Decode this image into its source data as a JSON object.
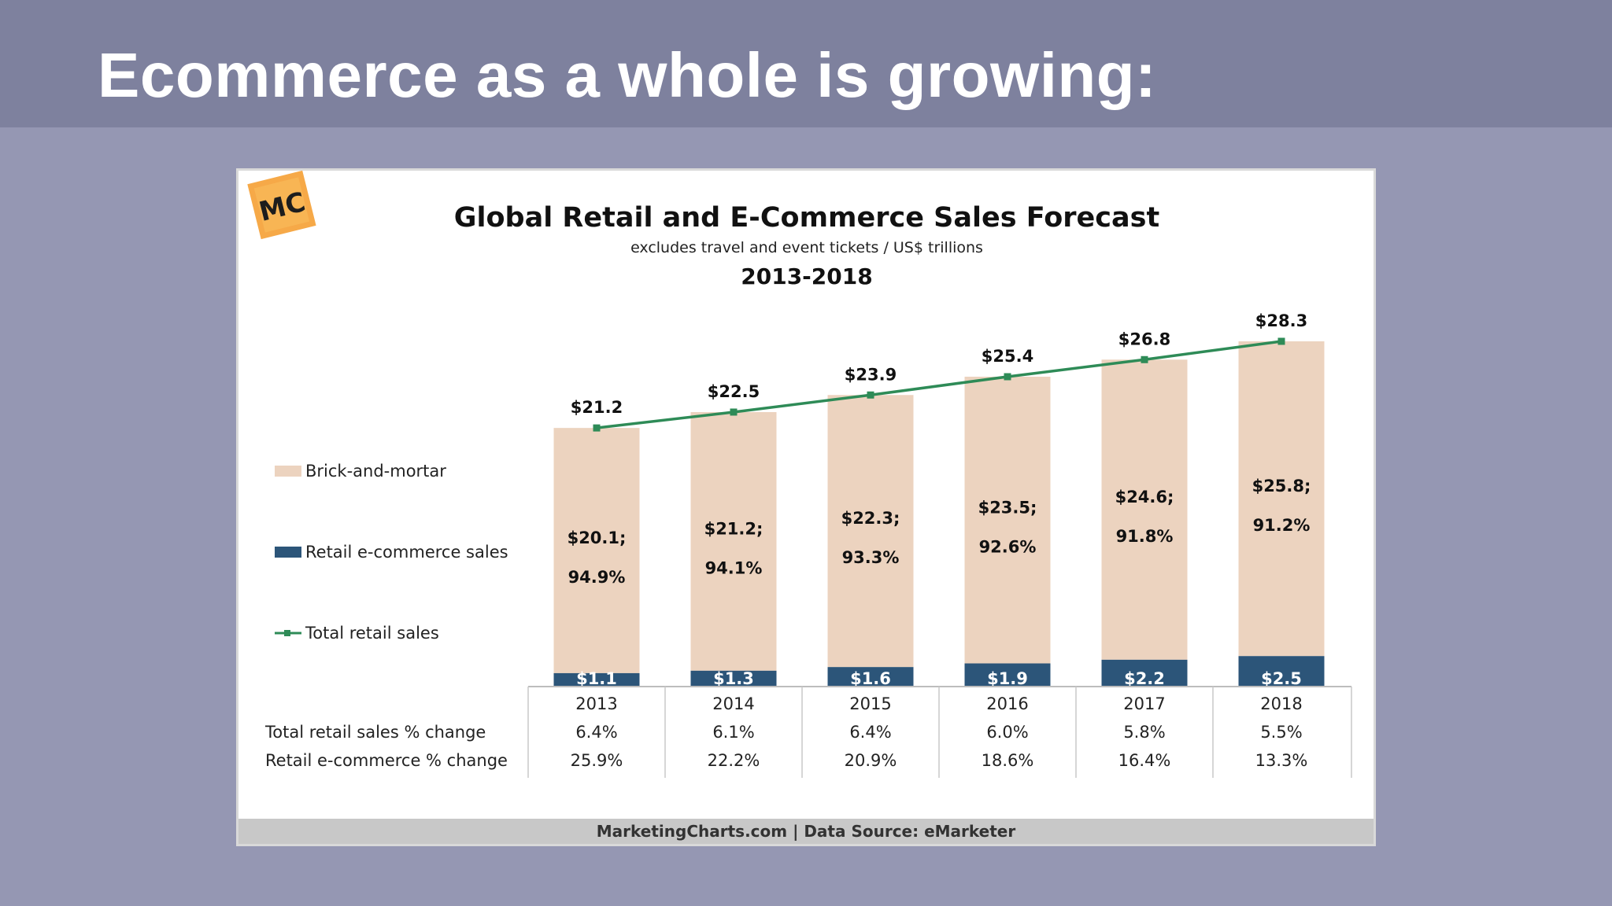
{
  "slide": {
    "title": "Ecommerce as a whole is growing:"
  },
  "chart": {
    "logo_text": "MC",
    "title": "Global Retail and E-Commerce Sales Forecast",
    "subtitle": "excludes travel and event tickets / US$ trillions",
    "period": "2013-2018",
    "footer": "MarketingCharts.com | Data Source: eMarketer",
    "table_rows": [
      {
        "label": "Total retail sales % change",
        "values": [
          "6.4%",
          "6.1%",
          "6.4%",
          "6.0%",
          "5.8%",
          "5.5%"
        ]
      },
      {
        "label": "Retail e-commerce % change",
        "values": [
          "25.9%",
          "22.2%",
          "20.9%",
          "18.6%",
          "16.4%",
          "13.3%"
        ]
      }
    ]
  },
  "chart_data": {
    "type": "bar",
    "stacked": true,
    "categories": [
      "2013",
      "2014",
      "2015",
      "2016",
      "2017",
      "2018"
    ],
    "series": [
      {
        "name": "Brick-and-mortar",
        "kind": "bar",
        "color": "#ecd3bf",
        "values": [
          20.1,
          21.2,
          22.3,
          23.5,
          24.6,
          25.8
        ],
        "labels": [
          "$20.1;",
          "$21.2;",
          "$22.3;",
          "$23.5;",
          "$24.6;",
          "$25.8;"
        ],
        "share_labels": [
          "94.9%",
          "94.1%",
          "93.3%",
          "92.6%",
          "91.8%",
          "91.2%"
        ]
      },
      {
        "name": "Retail e-commerce sales",
        "kind": "bar",
        "color": "#2c5579",
        "values": [
          1.1,
          1.3,
          1.6,
          1.9,
          2.2,
          2.5
        ],
        "labels": [
          "$1.1",
          "$1.3",
          "$1.6",
          "$1.9",
          "$2.2",
          "$2.5"
        ]
      },
      {
        "name": "Total retail sales",
        "kind": "line",
        "color": "#2e8b57",
        "values": [
          21.2,
          22.5,
          23.9,
          25.4,
          26.8,
          28.3
        ],
        "labels": [
          "$21.2",
          "$22.5",
          "$23.9",
          "$25.4",
          "$26.8",
          "$28.3"
        ]
      }
    ],
    "ylim": [
      0,
      28.3
    ],
    "grid": false,
    "legend_position": "left"
  }
}
